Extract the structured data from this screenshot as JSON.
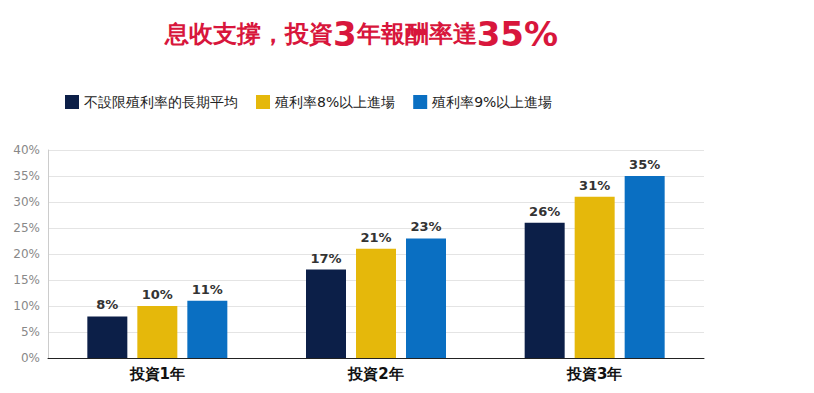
{
  "chart_data": {
    "type": "bar",
    "title": "息收支撐，投資3年報酬率達35%",
    "categories": [
      "投資1年",
      "投資2年",
      "投資3年"
    ],
    "series": [
      {
        "name": "不設限殖利率的長期平均",
        "color": "#0c1f48",
        "values": [
          8,
          17,
          26
        ],
        "value_labels": [
          "8%",
          "17%",
          "26%"
        ]
      },
      {
        "name": "殖利率8%以上進場",
        "color": "#e5b80b",
        "values": [
          10,
          21,
          31
        ],
        "value_labels": [
          "10%",
          "21%",
          "31%"
        ]
      },
      {
        "name": "殖利率9%以上進場",
        "color": "#0a6fc2",
        "values": [
          11,
          23,
          35
        ],
        "value_labels": [
          "11%",
          "23%",
          "35%"
        ]
      }
    ],
    "ylim": [
      0,
      40
    ],
    "yticks": [
      {
        "value": 0,
        "label": "0%"
      },
      {
        "value": 5,
        "label": "5%"
      },
      {
        "value": 10,
        "label": "10%"
      },
      {
        "value": 15,
        "label": "15%"
      },
      {
        "value": 20,
        "label": "20%"
      },
      {
        "value": 25,
        "label": "25%"
      },
      {
        "value": 30,
        "label": "30%"
      },
      {
        "value": 35,
        "label": "35%"
      },
      {
        "value": 40,
        "label": "40%"
      }
    ],
    "grid": true,
    "legend": "top",
    "data_labels": true
  }
}
